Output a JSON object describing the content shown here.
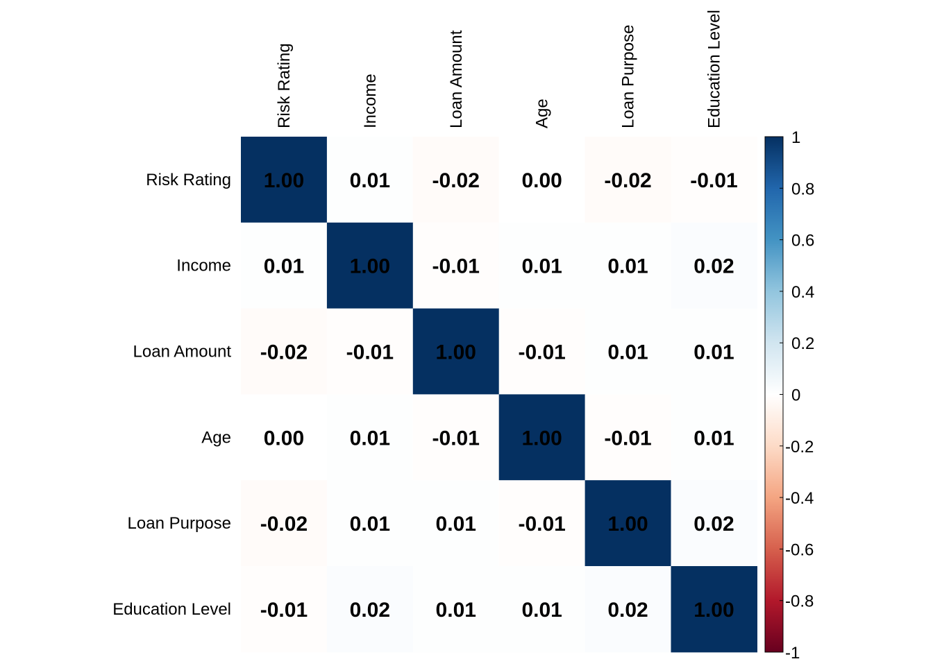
{
  "chart_data": {
    "type": "heatmap",
    "title": "",
    "row_labels": [
      "Risk Rating",
      "Income",
      "Loan Amount",
      "Age",
      "Loan Purpose",
      "Education Level"
    ],
    "col_labels": [
      "Risk Rating",
      "Income",
      "Loan Amount",
      "Age",
      "Loan Purpose",
      "Education Level"
    ],
    "values": [
      [
        1.0,
        0.01,
        -0.02,
        0.0,
        -0.02,
        -0.01
      ],
      [
        0.01,
        1.0,
        -0.01,
        0.01,
        0.01,
        0.02
      ],
      [
        -0.02,
        -0.01,
        1.0,
        -0.01,
        0.01,
        0.01
      ],
      [
        0.0,
        0.01,
        -0.01,
        1.0,
        -0.01,
        0.01
      ],
      [
        -0.02,
        0.01,
        0.01,
        -0.01,
        1.0,
        0.02
      ],
      [
        -0.01,
        0.02,
        0.01,
        0.01,
        0.02,
        1.0
      ]
    ],
    "value_labels": [
      [
        "1.00",
        "0.01",
        "-0.02",
        "0.00",
        "-0.02",
        "-0.01"
      ],
      [
        "0.01",
        "1.00",
        "-0.01",
        "0.01",
        "0.01",
        "0.02"
      ],
      [
        "-0.02",
        "-0.01",
        "1.00",
        "-0.01",
        "0.01",
        "0.01"
      ],
      [
        "0.00",
        "0.01",
        "-0.01",
        "1.00",
        "-0.01",
        "0.01"
      ],
      [
        "-0.02",
        "0.01",
        "0.01",
        "-0.01",
        "1.00",
        "0.02"
      ],
      [
        "-0.01",
        "0.02",
        "0.01",
        "0.01",
        "0.02",
        "1.00"
      ]
    ],
    "color_scale": {
      "min": -1,
      "max": 1,
      "stops": [
        {
          "value": -1,
          "color": "#67001F"
        },
        {
          "value": -0.8,
          "color": "#B2182B"
        },
        {
          "value": -0.6,
          "color": "#D6604D"
        },
        {
          "value": -0.4,
          "color": "#F4A582"
        },
        {
          "value": -0.2,
          "color": "#FDDBC7"
        },
        {
          "value": 0,
          "color": "#FFFFFF"
        },
        {
          "value": 0.2,
          "color": "#D1E5F0"
        },
        {
          "value": 0.4,
          "color": "#92C5DE"
        },
        {
          "value": 0.6,
          "color": "#4393C3"
        },
        {
          "value": 0.8,
          "color": "#2166AC"
        },
        {
          "value": 1,
          "color": "#053061"
        }
      ]
    },
    "legend": {
      "position": "right",
      "ticks": [
        "1",
        "0.8",
        "0.6",
        "0.4",
        "0.2",
        "0",
        "-0.2",
        "-0.4",
        "-0.6",
        "-0.8",
        "-1"
      ],
      "tick_values": [
        1,
        0.8,
        0.6,
        0.4,
        0.2,
        0,
        -0.2,
        -0.4,
        -0.6,
        -0.8,
        -1
      ]
    },
    "grid": false
  }
}
